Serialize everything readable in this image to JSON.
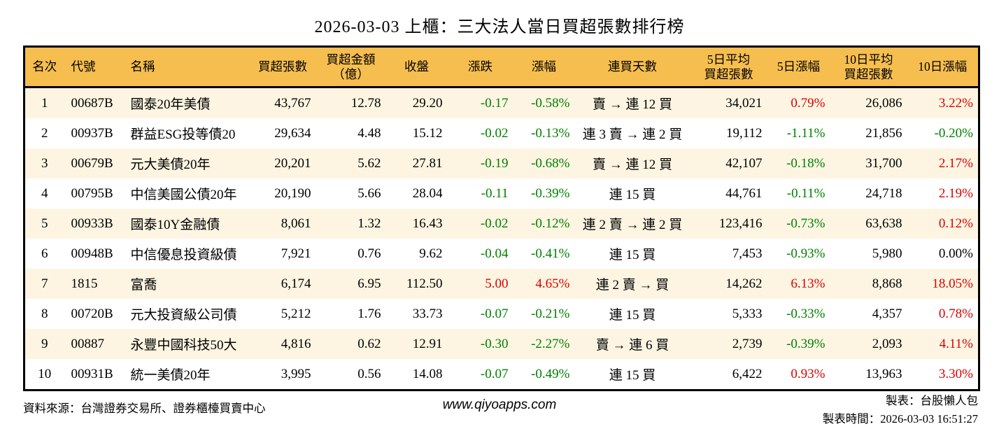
{
  "title": "2026-03-03 上櫃：三大法人當日買超張數排行榜",
  "colors": {
    "header_bg": "#f6be4f",
    "row_alt": "#fdf5e2",
    "up": "#dc0000",
    "down": "#008000",
    "border": "#000000"
  },
  "chart_data": {
    "type": "table",
    "title": "2026-03-03 上櫃：三大法人當日買超張數排行榜",
    "columns": [
      "名次",
      "代號",
      "名稱",
      "買超張數",
      "買超金額\n（億）",
      "收盤",
      "漲跌",
      "漲幅",
      "連買天數",
      "5日平均\n買超張數",
      "5日漲幅",
      "10日平均\n買超張數",
      "10日漲幅"
    ],
    "rows": [
      {
        "rank": "1",
        "code": "00687B",
        "name": "國泰20年美債",
        "net_buy": "43,767",
        "amount": "12.78",
        "close": "29.20",
        "change": "-0.17",
        "change_pct": "-0.58%",
        "change_dir": "down",
        "streak": "賣 → 連 12 買",
        "avg5": "34,021",
        "pct5": "0.79%",
        "pct5_dir": "up",
        "avg10": "26,086",
        "pct10": "3.22%",
        "pct10_dir": "up"
      },
      {
        "rank": "2",
        "code": "00937B",
        "name": "群益ESG投等債20",
        "net_buy": "29,634",
        "amount": "4.48",
        "close": "15.12",
        "change": "-0.02",
        "change_pct": "-0.13%",
        "change_dir": "down",
        "streak": "連 3 賣 → 連 2 買",
        "avg5": "19,112",
        "pct5": "-1.11%",
        "pct5_dir": "down",
        "avg10": "21,856",
        "pct10": "-0.20%",
        "pct10_dir": "down"
      },
      {
        "rank": "3",
        "code": "00679B",
        "name": "元大美債20年",
        "net_buy": "20,201",
        "amount": "5.62",
        "close": "27.81",
        "change": "-0.19",
        "change_pct": "-0.68%",
        "change_dir": "down",
        "streak": "賣 → 連 12 買",
        "avg5": "42,107",
        "pct5": "-0.18%",
        "pct5_dir": "down",
        "avg10": "31,700",
        "pct10": "2.17%",
        "pct10_dir": "up"
      },
      {
        "rank": "4",
        "code": "00795B",
        "name": "中信美國公債20年",
        "net_buy": "20,190",
        "amount": "5.66",
        "close": "28.04",
        "change": "-0.11",
        "change_pct": "-0.39%",
        "change_dir": "down",
        "streak": "連 15 買",
        "avg5": "44,761",
        "pct5": "-0.11%",
        "pct5_dir": "down",
        "avg10": "24,718",
        "pct10": "2.19%",
        "pct10_dir": "up"
      },
      {
        "rank": "5",
        "code": "00933B",
        "name": "國泰10Y金融債",
        "net_buy": "8,061",
        "amount": "1.32",
        "close": "16.43",
        "change": "-0.02",
        "change_pct": "-0.12%",
        "change_dir": "down",
        "streak": "連 2 賣 → 連 2 買",
        "avg5": "123,416",
        "pct5": "-0.73%",
        "pct5_dir": "down",
        "avg10": "63,638",
        "pct10": "0.12%",
        "pct10_dir": "up"
      },
      {
        "rank": "6",
        "code": "00948B",
        "name": "中信優息投資級債",
        "net_buy": "7,921",
        "amount": "0.76",
        "close": "9.62",
        "change": "-0.04",
        "change_pct": "-0.41%",
        "change_dir": "down",
        "streak": "連 15 買",
        "avg5": "7,453",
        "pct5": "-0.93%",
        "pct5_dir": "down",
        "avg10": "5,980",
        "pct10": "0.00%",
        "pct10_dir": "flat"
      },
      {
        "rank": "7",
        "code": "1815",
        "name": "富喬",
        "net_buy": "6,174",
        "amount": "6.95",
        "close": "112.50",
        "change": "5.00",
        "change_pct": "4.65%",
        "change_dir": "up",
        "streak": "連 2 賣 → 買",
        "avg5": "14,262",
        "pct5": "6.13%",
        "pct5_dir": "up",
        "avg10": "8,868",
        "pct10": "18.05%",
        "pct10_dir": "up"
      },
      {
        "rank": "8",
        "code": "00720B",
        "name": "元大投資級公司債",
        "net_buy": "5,212",
        "amount": "1.76",
        "close": "33.73",
        "change": "-0.07",
        "change_pct": "-0.21%",
        "change_dir": "down",
        "streak": "連 15 買",
        "avg5": "5,333",
        "pct5": "-0.33%",
        "pct5_dir": "down",
        "avg10": "4,357",
        "pct10": "0.78%",
        "pct10_dir": "up"
      },
      {
        "rank": "9",
        "code": "00887",
        "name": "永豐中國科技50大",
        "net_buy": "4,816",
        "amount": "0.62",
        "close": "12.91",
        "change": "-0.30",
        "change_pct": "-2.27%",
        "change_dir": "down",
        "streak": "賣 → 連 6 買",
        "avg5": "2,739",
        "pct5": "-0.39%",
        "pct5_dir": "down",
        "avg10": "2,093",
        "pct10": "4.11%",
        "pct10_dir": "up"
      },
      {
        "rank": "10",
        "code": "00931B",
        "name": "統一美債20年",
        "net_buy": "3,995",
        "amount": "0.56",
        "close": "14.08",
        "change": "-0.07",
        "change_pct": "-0.49%",
        "change_dir": "down",
        "streak": "連 15 買",
        "avg5": "6,422",
        "pct5": "0.93%",
        "pct5_dir": "up",
        "avg10": "13,963",
        "pct10": "3.30%",
        "pct10_dir": "up"
      }
    ]
  },
  "footer": {
    "source": "資料來源：台灣證券交易所、證券櫃檯買賣中心",
    "website": "www.qiyoapps.com",
    "author": "製表：台股懶人包",
    "generated": "製表時間：2026-03-03 16:51:27"
  }
}
